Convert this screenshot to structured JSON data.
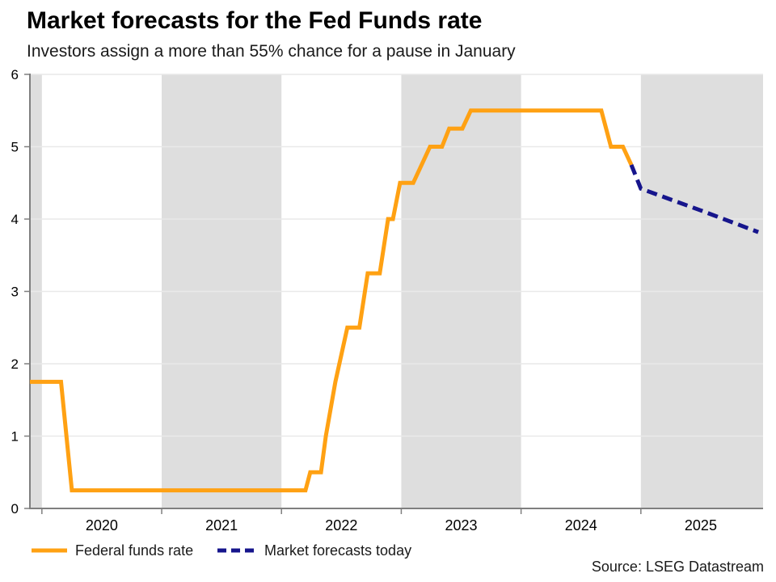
{
  "header": {
    "title": "Market forecasts for the Fed Funds rate",
    "subtitle": "Investors assign a more than 55% chance for a pause in January"
  },
  "footer": {
    "source": "Source: LSEG Datastream"
  },
  "colors": {
    "fed_funds_line": "#FFA113",
    "forecast_line": "#16158C",
    "year_band": "#DEDEDE",
    "gridline": "#E9E9E9",
    "axis": "#7F7F7F",
    "tick_label": "#000000",
    "text": "#1A1A1A"
  },
  "chart_data": {
    "type": "line",
    "title": "Market forecasts for the Fed Funds rate",
    "subtitle": "Investors assign a more than 55% chance for a pause in January",
    "xlabel": "",
    "ylabel": "",
    "ylim": [
      0,
      6
    ],
    "yticks": [
      0,
      1,
      2,
      3,
      4,
      5,
      6
    ],
    "yticklabels": [
      "0",
      "1",
      "2",
      "3",
      "4",
      "5",
      "6"
    ],
    "xdomain": [
      2019.9,
      2026.02
    ],
    "xticks": [
      2020,
      2021,
      2022,
      2023,
      2024,
      2025
    ],
    "xticklabels": [
      "2020",
      "2021",
      "2022",
      "2023",
      "2024",
      "2025"
    ],
    "grid": true,
    "legend_position": "bottom",
    "shaded_bands": [
      [
        2019.9,
        2020.0
      ],
      [
        2021.0,
        2022.0
      ],
      [
        2023.0,
        2024.0
      ],
      [
        2025.0,
        2026.02
      ]
    ],
    "series": [
      {
        "name": "Federal funds rate",
        "color": "#FFA113",
        "dash": null,
        "points": [
          [
            2019.9,
            1.75
          ],
          [
            2020.16,
            1.75
          ],
          [
            2020.25,
            0.25
          ],
          [
            2022.2,
            0.25
          ],
          [
            2022.24,
            0.5
          ],
          [
            2022.33,
            0.5
          ],
          [
            2022.37,
            1.0
          ],
          [
            2022.45,
            1.75
          ],
          [
            2022.55,
            2.5
          ],
          [
            2022.65,
            2.5
          ],
          [
            2022.72,
            3.25
          ],
          [
            2022.82,
            3.25
          ],
          [
            2022.89,
            4.0
          ],
          [
            2022.93,
            4.0
          ],
          [
            2022.99,
            4.5
          ],
          [
            2023.1,
            4.5
          ],
          [
            2023.24,
            5.0
          ],
          [
            2023.34,
            5.0
          ],
          [
            2023.4,
            5.25
          ],
          [
            2023.51,
            5.25
          ],
          [
            2023.58,
            5.5
          ],
          [
            2024.67,
            5.5
          ],
          [
            2024.75,
            5.0
          ],
          [
            2024.85,
            5.0
          ],
          [
            2024.92,
            4.75
          ]
        ]
      },
      {
        "name": "Market forecasts today",
        "color": "#16158C",
        "dash": [
          13,
          7
        ],
        "points": [
          [
            2024.92,
            4.75
          ],
          [
            2025.0,
            4.42
          ],
          [
            2025.5,
            4.12
          ],
          [
            2025.98,
            3.82
          ]
        ]
      }
    ]
  }
}
